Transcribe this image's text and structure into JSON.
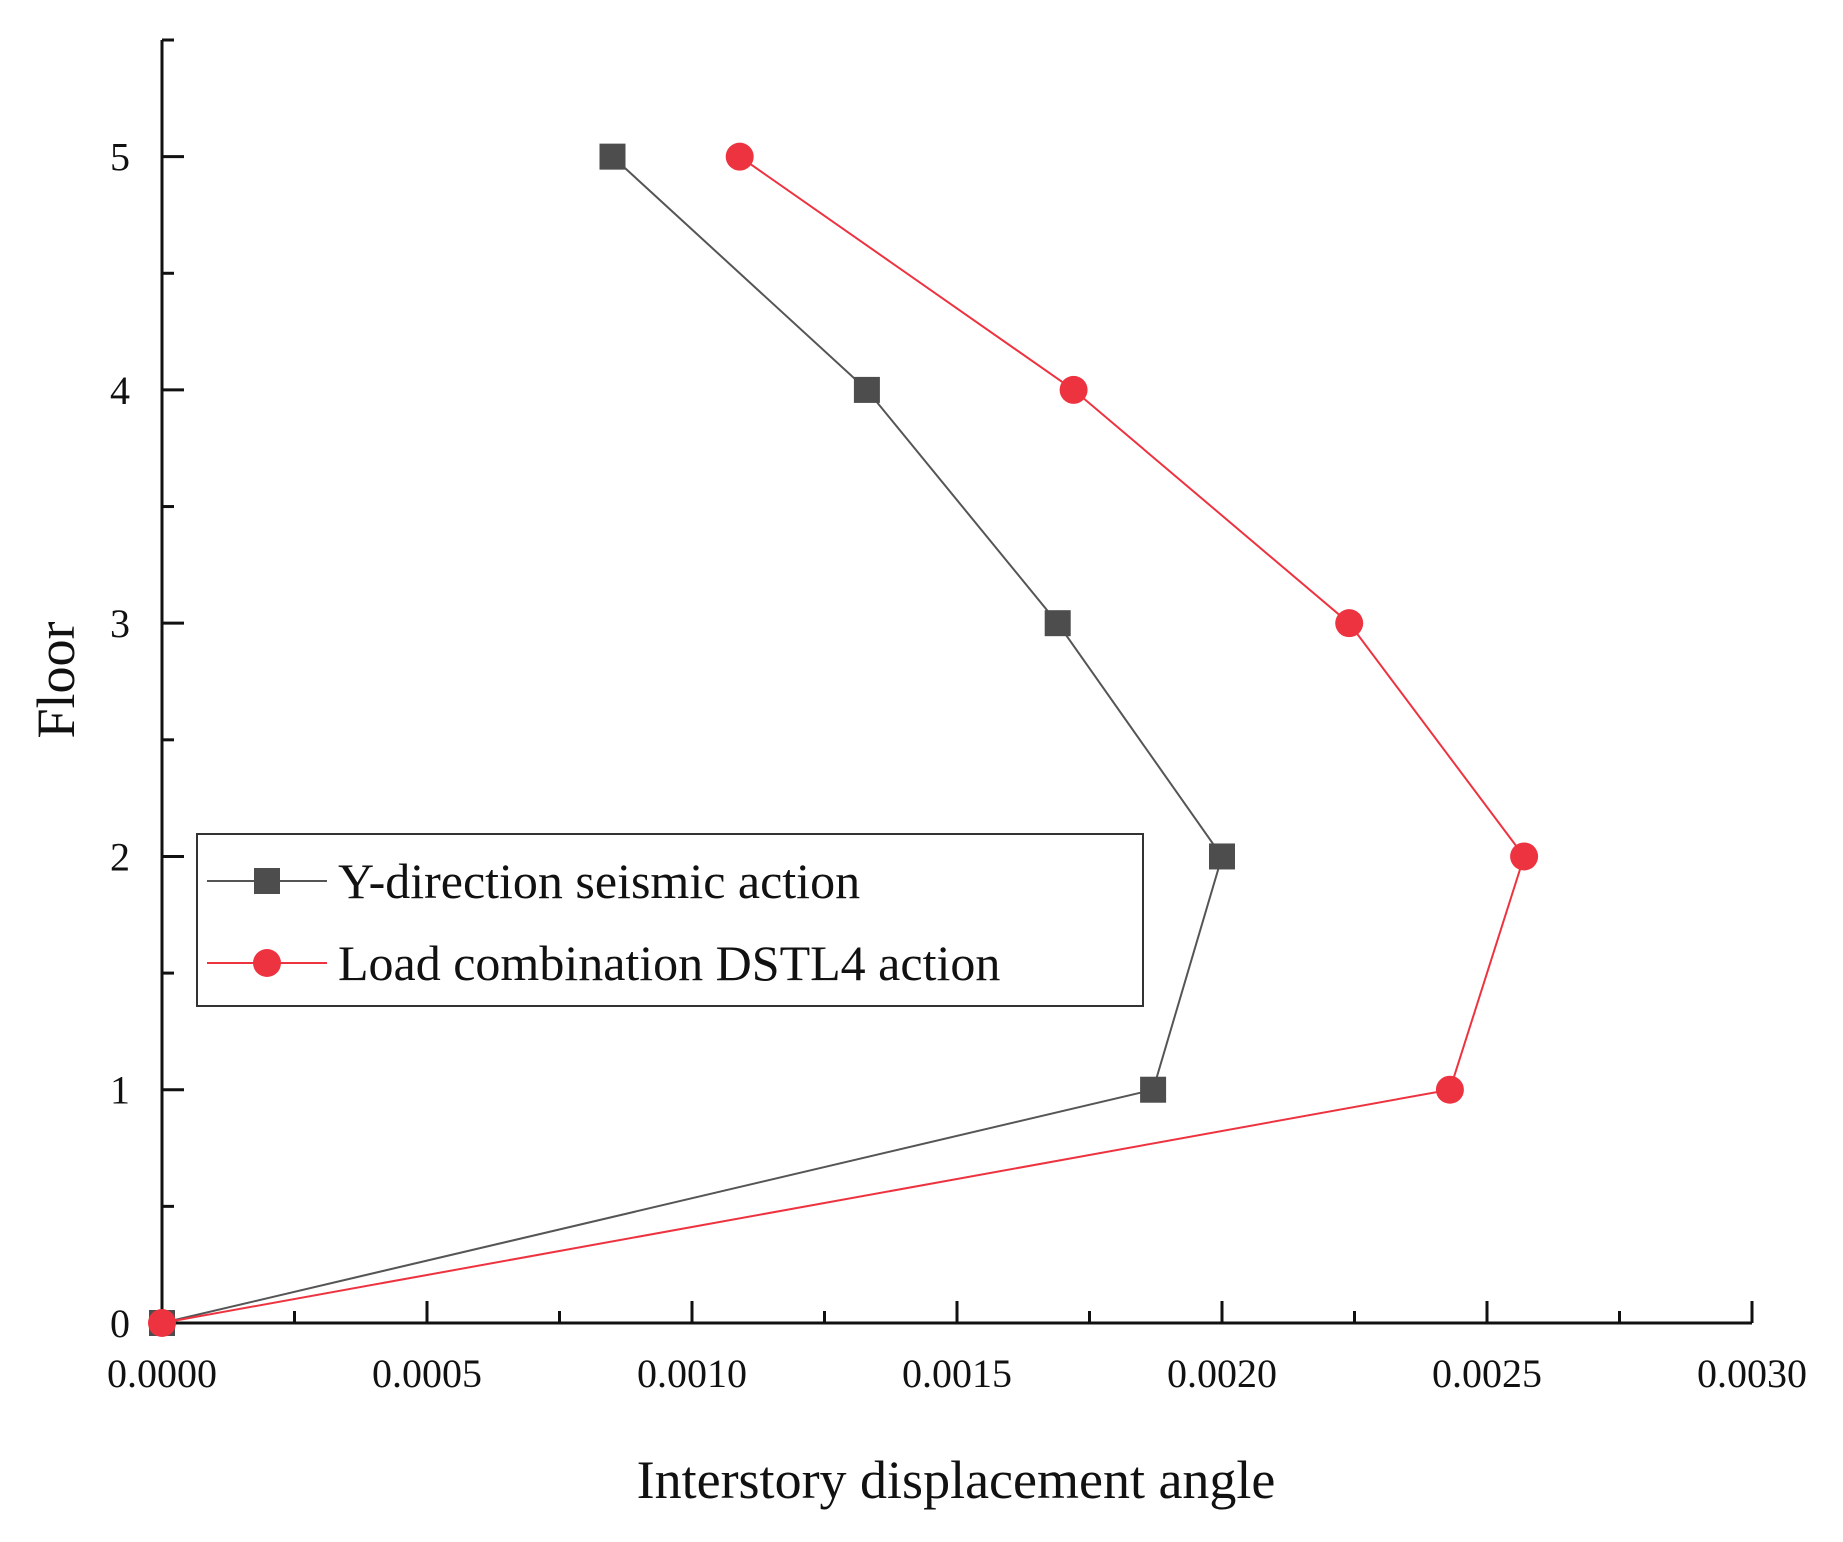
{
  "chart_data": {
    "type": "line",
    "title": "",
    "xlabel": "Interstory displacement angle",
    "ylabel": "Floor",
    "xlim": [
      0,
      0.003
    ],
    "ylim": [
      0,
      5.5
    ],
    "x_ticks": [
      "0.0000",
      "0.0005",
      "0.0010",
      "0.0015",
      "0.0020",
      "0.0025",
      "0.0030"
    ],
    "x_tick_values": [
      0,
      0.0005,
      0.001,
      0.0015,
      0.002,
      0.0025,
      0.003
    ],
    "y_ticks": [
      "0",
      "1",
      "2",
      "3",
      "4",
      "5"
    ],
    "y_tick_values": [
      0,
      1,
      2,
      3,
      4,
      5
    ],
    "grid": false,
    "legend_position": "center-left",
    "series": [
      {
        "name": "Y-direction seismic action",
        "color": "#4d4d4d",
        "line_color": "#555555",
        "marker": "square",
        "points": [
          {
            "x": 0.0,
            "y": 0
          },
          {
            "x": 0.00187,
            "y": 1
          },
          {
            "x": 0.002,
            "y": 2
          },
          {
            "x": 0.00169,
            "y": 3
          },
          {
            "x": 0.00133,
            "y": 4
          },
          {
            "x": 0.00085,
            "y": 5
          }
        ]
      },
      {
        "name": "Load combination DSTL4 action",
        "color": "#ee3340",
        "line_color": "#ee3340",
        "marker": "circle",
        "points": [
          {
            "x": 0.0,
            "y": 0
          },
          {
            "x": 0.00243,
            "y": 1
          },
          {
            "x": 0.00257,
            "y": 2
          },
          {
            "x": 0.00224,
            "y": 3
          },
          {
            "x": 0.00172,
            "y": 4
          },
          {
            "x": 0.00109,
            "y": 5
          }
        ]
      }
    ]
  }
}
